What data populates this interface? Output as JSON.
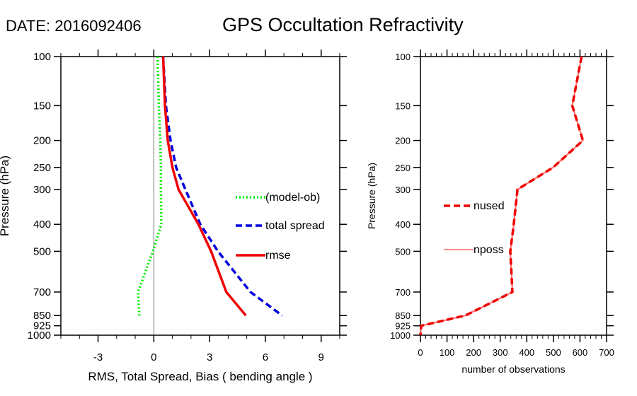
{
  "header": {
    "date_label": "DATE: 2016092406",
    "title": "GPS Occultation Refractivity"
  },
  "chart_data": [
    {
      "type": "line",
      "name": "left-panel",
      "xlabel": "RMS, Total Spread, Bias ( bending angle )",
      "ylabel": "Pressure (hPa)",
      "xlim": [
        -5,
        10
      ],
      "ylim": [
        1000,
        100
      ],
      "yscale": "log",
      "x_ticks": [
        -3,
        0,
        3,
        6,
        9
      ],
      "x_tick_labels": [
        "-3",
        "0",
        "3",
        "6",
        "9"
      ],
      "y_ticks": [
        100,
        150,
        200,
        250,
        300,
        400,
        500,
        700,
        850,
        925,
        1000
      ],
      "y_tick_labels": [
        "100",
        "150",
        "200",
        "250",
        "300",
        "400",
        "500",
        "700",
        "850",
        "925",
        "1000"
      ],
      "zero_line": 0,
      "grid": false,
      "legend_position": "center-right",
      "pressure": [
        100,
        150,
        200,
        250,
        300,
        400,
        500,
        700,
        850
      ],
      "series": [
        {
          "name": "(model-ob)",
          "color": "#00ee00",
          "style": "dotted",
          "values": [
            0.2,
            0.27,
            0.35,
            0.38,
            0.38,
            0.4,
            -0.05,
            -0.85,
            -0.78
          ]
        },
        {
          "name": "total spread",
          "color": "#0000dd",
          "style": "dashed",
          "values": [
            0.5,
            0.65,
            0.9,
            1.2,
            1.7,
            2.5,
            3.45,
            5.2,
            6.9
          ]
        },
        {
          "name": "rmse",
          "color": "#ee0000",
          "style": "solid",
          "values": [
            0.5,
            0.6,
            0.75,
            1.0,
            1.33,
            2.4,
            3.08,
            3.9,
            4.95
          ]
        }
      ]
    },
    {
      "type": "line",
      "name": "right-panel",
      "xlabel": "number of observations",
      "ylabel": "Pressure (hPa)",
      "xlim": [
        0,
        700
      ],
      "ylim": [
        1000,
        100
      ],
      "yscale": "log",
      "x_ticks": [
        0,
        100,
        200,
        300,
        400,
        500,
        600,
        700
      ],
      "x_tick_labels": [
        "0",
        "100",
        "200",
        "300",
        "400",
        "500",
        "600",
        "700"
      ],
      "y_ticks": [
        100,
        150,
        200,
        250,
        300,
        400,
        500,
        700,
        850,
        925,
        1000
      ],
      "y_tick_labels": [
        "100",
        "150",
        "200",
        "250",
        "300",
        "400",
        "500",
        "700",
        "850",
        "925",
        "1000"
      ],
      "grid": false,
      "legend_position": "center-left",
      "pressure": [
        100,
        150,
        200,
        250,
        300,
        400,
        500,
        700,
        850,
        925,
        1000
      ],
      "series": [
        {
          "name": "nused",
          "color": "#ee0000",
          "style": "dashed",
          "values": [
            606,
            571,
            611,
            499,
            365,
            351,
            338,
            346,
            169,
            3,
            0
          ]
        },
        {
          "name": "nposs",
          "color": "#ff6666",
          "style": "solid",
          "values": [
            606,
            571,
            611,
            499,
            365,
            351,
            338,
            346,
            169,
            3,
            0
          ]
        }
      ]
    }
  ]
}
